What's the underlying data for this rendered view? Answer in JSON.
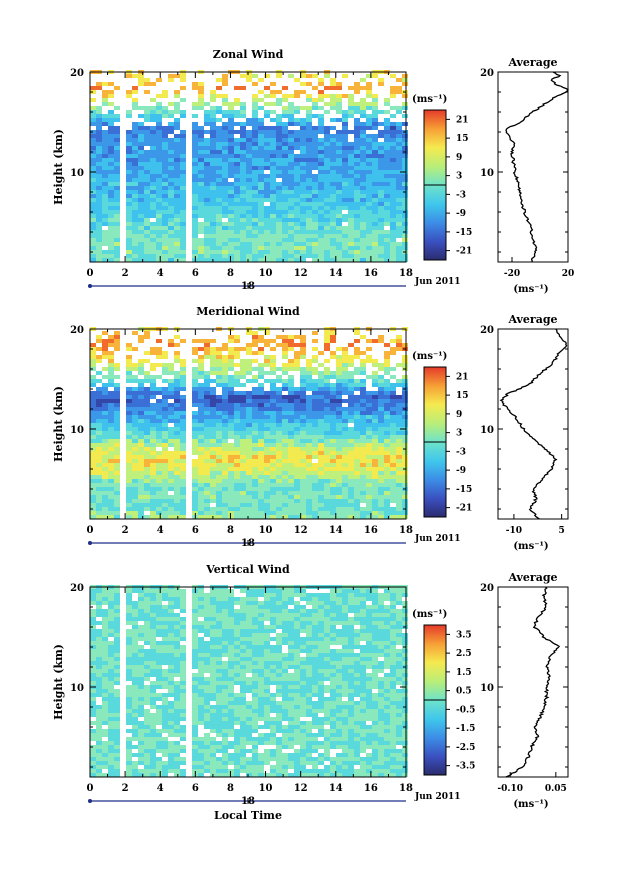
{
  "figure": {
    "date_label": "Jun 2011",
    "day_label": "18",
    "x_label": "Local Time",
    "units_label": "(ms⁻¹)",
    "average_title": "Average",
    "y_label": "Height (km)"
  },
  "chart_data": [
    {
      "type": "heatmap",
      "title": "Zonal Wind",
      "ylabel": "Height (km)",
      "xlabel": "",
      "x_ticks": [
        0,
        2,
        4,
        6,
        8,
        10,
        12,
        14,
        16,
        18
      ],
      "y_ticks": [
        10,
        20
      ],
      "xlim": [
        0,
        18
      ],
      "ylim": [
        1,
        20
      ],
      "colorbar": {
        "ticks": [
          "21",
          "15",
          "9",
          "3",
          "-3",
          "-9",
          "-15",
          "-21"
        ],
        "range": [
          -24,
          24
        ]
      },
      "profile_levels": [
        {
          "h": 1.0,
          "v": -6
        },
        {
          "h": 2.0,
          "v": -3
        },
        {
          "h": 3.0,
          "v": -4
        },
        {
          "h": 4.0,
          "v": -6
        },
        {
          "h": 5.0,
          "v": -8
        },
        {
          "h": 6.0,
          "v": -11
        },
        {
          "h": 7.0,
          "v": -13
        },
        {
          "h": 8.0,
          "v": -14
        },
        {
          "h": 9.0,
          "v": -16
        },
        {
          "h": 10.0,
          "v": -18
        },
        {
          "h": 11.0,
          "v": -19
        },
        {
          "h": 12.0,
          "v": -20
        },
        {
          "h": 12.8,
          "v": -18
        },
        {
          "h": 13.5,
          "v": -22
        },
        {
          "h": 14.3,
          "v": -24
        },
        {
          "h": 15.0,
          "v": -14
        },
        {
          "h": 16.0,
          "v": -5
        },
        {
          "h": 17.0,
          "v": 5
        },
        {
          "h": 17.8,
          "v": 15
        },
        {
          "h": 18.2,
          "v": 21
        },
        {
          "h": 18.7,
          "v": 12
        },
        {
          "h": 19.2,
          "v": 8
        },
        {
          "h": 19.6,
          "v": 14
        },
        {
          "h": 20.0,
          "v": 10
        }
      ],
      "profile_xlim": [
        -30,
        20
      ],
      "profile_ticks": [
        "-20",
        "20"
      ],
      "profile_tick_values": [
        -20,
        20
      ],
      "profile_ylabel": "10",
      "profile_units": "(ms⁻¹)"
    },
    {
      "type": "heatmap",
      "title": "Meridional Wind",
      "ylabel": "Height (km)",
      "xlabel": "",
      "x_ticks": [
        0,
        2,
        4,
        6,
        8,
        10,
        12,
        14,
        16,
        18
      ],
      "y_ticks": [
        10,
        20
      ],
      "xlim": [
        0,
        18
      ],
      "ylim": [
        1,
        20
      ],
      "colorbar": {
        "ticks": [
          "21",
          "15",
          "9",
          "3",
          "-3",
          "-9",
          "-15",
          "-21"
        ],
        "range": [
          -24,
          24
        ]
      },
      "profile_levels": [
        {
          "h": 1.0,
          "v": -2
        },
        {
          "h": 2.0,
          "v": -5
        },
        {
          "h": 3.0,
          "v": -3
        },
        {
          "h": 4.0,
          "v": -4
        },
        {
          "h": 5.0,
          "v": -1
        },
        {
          "h": 6.0,
          "v": 2
        },
        {
          "h": 7.0,
          "v": 3
        },
        {
          "h": 8.0,
          "v": 0
        },
        {
          "h": 9.0,
          "v": -4
        },
        {
          "h": 10.0,
          "v": -7
        },
        {
          "h": 11.0,
          "v": -9
        },
        {
          "h": 12.0,
          "v": -12
        },
        {
          "h": 12.8,
          "v": -14
        },
        {
          "h": 13.5,
          "v": -12
        },
        {
          "h": 14.5,
          "v": -5
        },
        {
          "h": 15.5,
          "v": -2
        },
        {
          "h": 16.5,
          "v": 2
        },
        {
          "h": 17.5,
          "v": 4
        },
        {
          "h": 18.3,
          "v": 7
        },
        {
          "h": 19.0,
          "v": 5
        },
        {
          "h": 19.5,
          "v": 4
        },
        {
          "h": 20.0,
          "v": 3
        }
      ],
      "profile_xlim": [
        -15,
        7
      ],
      "profile_ticks": [
        "-10",
        "5"
      ],
      "profile_tick_values": [
        -10,
        5
      ],
      "profile_ylabel": "10",
      "profile_units": "(ms⁻¹)"
    },
    {
      "type": "heatmap",
      "title": "Vertical Wind",
      "ylabel": "Height (km)",
      "xlabel": "Local Time",
      "x_ticks": [
        0,
        2,
        4,
        6,
        8,
        10,
        12,
        14,
        16,
        18
      ],
      "y_ticks": [
        10,
        20
      ],
      "xlim": [
        0,
        18
      ],
      "ylim": [
        1,
        20
      ],
      "colorbar": {
        "ticks": [
          "3.5",
          "2.5",
          "1.5",
          "0.5",
          "-0.5",
          "-1.5",
          "-2.5",
          "-3.5"
        ],
        "range": [
          -4,
          4
        ]
      },
      "profile_levels": [
        {
          "h": 1.0,
          "v": -0.11
        },
        {
          "h": 2.0,
          "v": -0.06
        },
        {
          "h": 3.0,
          "v": -0.04
        },
        {
          "h": 4.0,
          "v": -0.03
        },
        {
          "h": 5.0,
          "v": -0.01
        },
        {
          "h": 6.0,
          "v": -0.02
        },
        {
          "h": 7.0,
          "v": 0.0
        },
        {
          "h": 8.0,
          "v": 0.01
        },
        {
          "h": 9.0,
          "v": 0.02
        },
        {
          "h": 10.0,
          "v": 0.02
        },
        {
          "h": 11.0,
          "v": 0.03
        },
        {
          "h": 12.0,
          "v": 0.02
        },
        {
          "h": 13.0,
          "v": 0.03
        },
        {
          "h": 14.0,
          "v": 0.06
        },
        {
          "h": 15.0,
          "v": 0.01
        },
        {
          "h": 16.0,
          "v": -0.02
        },
        {
          "h": 17.0,
          "v": -0.01
        },
        {
          "h": 18.0,
          "v": 0.02
        },
        {
          "h": 19.0,
          "v": 0.01
        },
        {
          "h": 20.0,
          "v": 0.02
        }
      ],
      "profile_xlim": [
        -0.14,
        0.09
      ],
      "profile_ticks": [
        "-0.10",
        "0.05"
      ],
      "profile_tick_values": [
        -0.1,
        0.05
      ],
      "profile_ylabel": "10",
      "profile_units": "(ms⁻¹)"
    }
  ]
}
